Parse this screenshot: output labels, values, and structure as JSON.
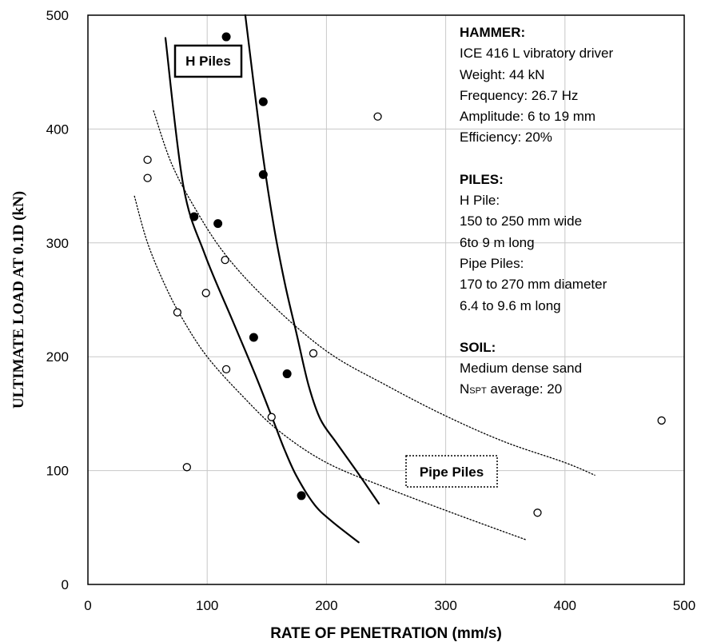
{
  "chart_data": {
    "type": "scatter",
    "xlabel": "RATE OF PENETRATION (mm/s)",
    "ylabel": "ULTIMATE LOAD AT 0.1D (kN)",
    "xlim": [
      0,
      500
    ],
    "ylim": [
      0,
      500
    ],
    "xticks": [
      "0",
      "100",
      "200",
      "300",
      "400",
      "500"
    ],
    "yticks": [
      "0",
      "100",
      "200",
      "300",
      "400",
      "500"
    ],
    "grid": true,
    "series": [
      {
        "name": "H Piles",
        "marker": "filled-circle",
        "color": "#000000",
        "points": [
          [
            116,
            481
          ],
          [
            147,
            424
          ],
          [
            147,
            360
          ],
          [
            89,
            323
          ],
          [
            109,
            317
          ],
          [
            139,
            217
          ],
          [
            167,
            185
          ],
          [
            179,
            78
          ]
        ]
      },
      {
        "name": "Pipe Piles",
        "marker": "open-circle",
        "color": "#000000",
        "points": [
          [
            243,
            411
          ],
          [
            50,
            373
          ],
          [
            50,
            357
          ],
          [
            115,
            285
          ],
          [
            99,
            256
          ],
          [
            75,
            239
          ],
          [
            189,
            203
          ],
          [
            116,
            189
          ],
          [
            154,
            147
          ],
          [
            83,
            103
          ],
          [
            377,
            63
          ],
          [
            481,
            144
          ]
        ]
      }
    ],
    "bound_curves": [
      {
        "group": "H Piles",
        "style": "solid",
        "points": [
          [
            65,
            480
          ],
          [
            80,
            350
          ],
          [
            98,
            290
          ],
          [
            122,
            230
          ],
          [
            140,
            185
          ],
          [
            155,
            145
          ],
          [
            165,
            118
          ],
          [
            175,
            95
          ],
          [
            190,
            70
          ],
          [
            205,
            55
          ],
          [
            227,
            37
          ]
        ]
      },
      {
        "group": "H Piles",
        "style": "solid",
        "points": [
          [
            132,
            500
          ],
          [
            145,
            390
          ],
          [
            155,
            320
          ],
          [
            165,
            265
          ],
          [
            175,
            220
          ],
          [
            185,
            175
          ],
          [
            195,
            145
          ],
          [
            208,
            125
          ],
          [
            225,
            100
          ],
          [
            244,
            71
          ]
        ]
      },
      {
        "group": "Pipe Piles",
        "style": "dotted",
        "points": [
          [
            39,
            341
          ],
          [
            50,
            300
          ],
          [
            65,
            262
          ],
          [
            80,
            232
          ],
          [
            100,
            200
          ],
          [
            130,
            165
          ],
          [
            160,
            135
          ],
          [
            200,
            107
          ],
          [
            250,
            85
          ],
          [
            300,
            65
          ],
          [
            368,
            39
          ]
        ]
      },
      {
        "group": "Pipe Piles",
        "style": "dotted",
        "points": [
          [
            55,
            416
          ],
          [
            70,
            370
          ],
          [
            90,
            330
          ],
          [
            115,
            290
          ],
          [
            150,
            250
          ],
          [
            200,
            205
          ],
          [
            250,
            175
          ],
          [
            300,
            148
          ],
          [
            350,
            125
          ],
          [
            400,
            107
          ],
          [
            425,
            96
          ]
        ]
      }
    ],
    "labels": {
      "h_piles": "H Piles",
      "pipe_piles": "Pipe Piles"
    }
  },
  "info": {
    "hammer_title": "HAMMER:",
    "hammer_lines": [
      "ICE 416 L vibratory driver",
      "Weight: 44 kN",
      "Frequency: 26.7 Hz",
      "Amplitude: 6 to 19 mm",
      "Efficiency: 20%"
    ],
    "piles_title": "PILES:",
    "piles_lines": [
      "H Pile:",
      "150 to 250 mm wide",
      "6to 9 m long",
      "Pipe Piles:",
      "170 to 270 mm diameter",
      "6.4 to 9.6 m long"
    ],
    "soil_title": "SOIL:",
    "soil_line": "Medium dense sand",
    "nspt_prefix": "N",
    "nspt_sub": "SPT",
    "nspt_rest": " average: 20"
  }
}
